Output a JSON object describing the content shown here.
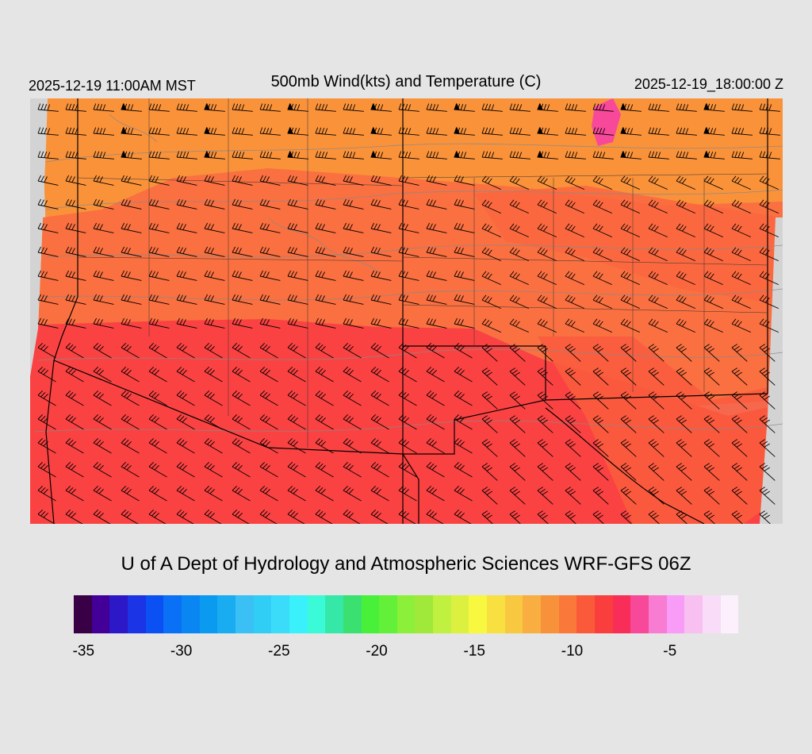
{
  "header": {
    "local_time": "2025-12-19 11:00AM MST",
    "title": "500mb Wind(kts) and Temperature (C)",
    "valid_time": "2025-12-19_18:00:00 Z"
  },
  "credit": "U of A Dept of Hydrology and Atmospheric Sciences WRF-GFS 06Z",
  "colorbar": {
    "min": -35.5,
    "max": -1.5,
    "step": 1,
    "colors": [
      "#3a0046",
      "#430098",
      "#2d18c8",
      "#1a34e6",
      "#0a50f2",
      "#0a70f5",
      "#0a86f2",
      "#0a9af0",
      "#1aacf0",
      "#3ac0f5",
      "#30cef5",
      "#3adcfa",
      "#3af0fa",
      "#3afad8",
      "#35e8a8",
      "#3ae070",
      "#48f03a",
      "#62f038",
      "#8cf03a",
      "#a0e83a",
      "#c0f040",
      "#dcf040",
      "#f8f840",
      "#f8e040",
      "#f8c840",
      "#f8ae40",
      "#f8923a",
      "#fa783a",
      "#fa5a3a",
      "#fa3e3e",
      "#f82e58",
      "#f8489a",
      "#f87cd2",
      "#f89cf8",
      "#f8c0f0",
      "#f8dcf8",
      "#fcf0fc"
    ],
    "tick_labels": [
      "-35",
      "-30",
      "-25",
      "-20",
      "-15",
      "-10",
      "-5"
    ],
    "tick_values": [
      -35,
      -30,
      -25,
      -20,
      -15,
      -10,
      -5
    ]
  },
  "map": {
    "colors": {
      "no_data": "#d3d3d3",
      "orange": "#fa923a",
      "dark_orange": "#fa7040",
      "red_orange": "#fa5c3e",
      "red": "#fa4242",
      "magenta": "#f8489a",
      "contour": "#8a8a8a",
      "border": "#000000"
    }
  }
}
